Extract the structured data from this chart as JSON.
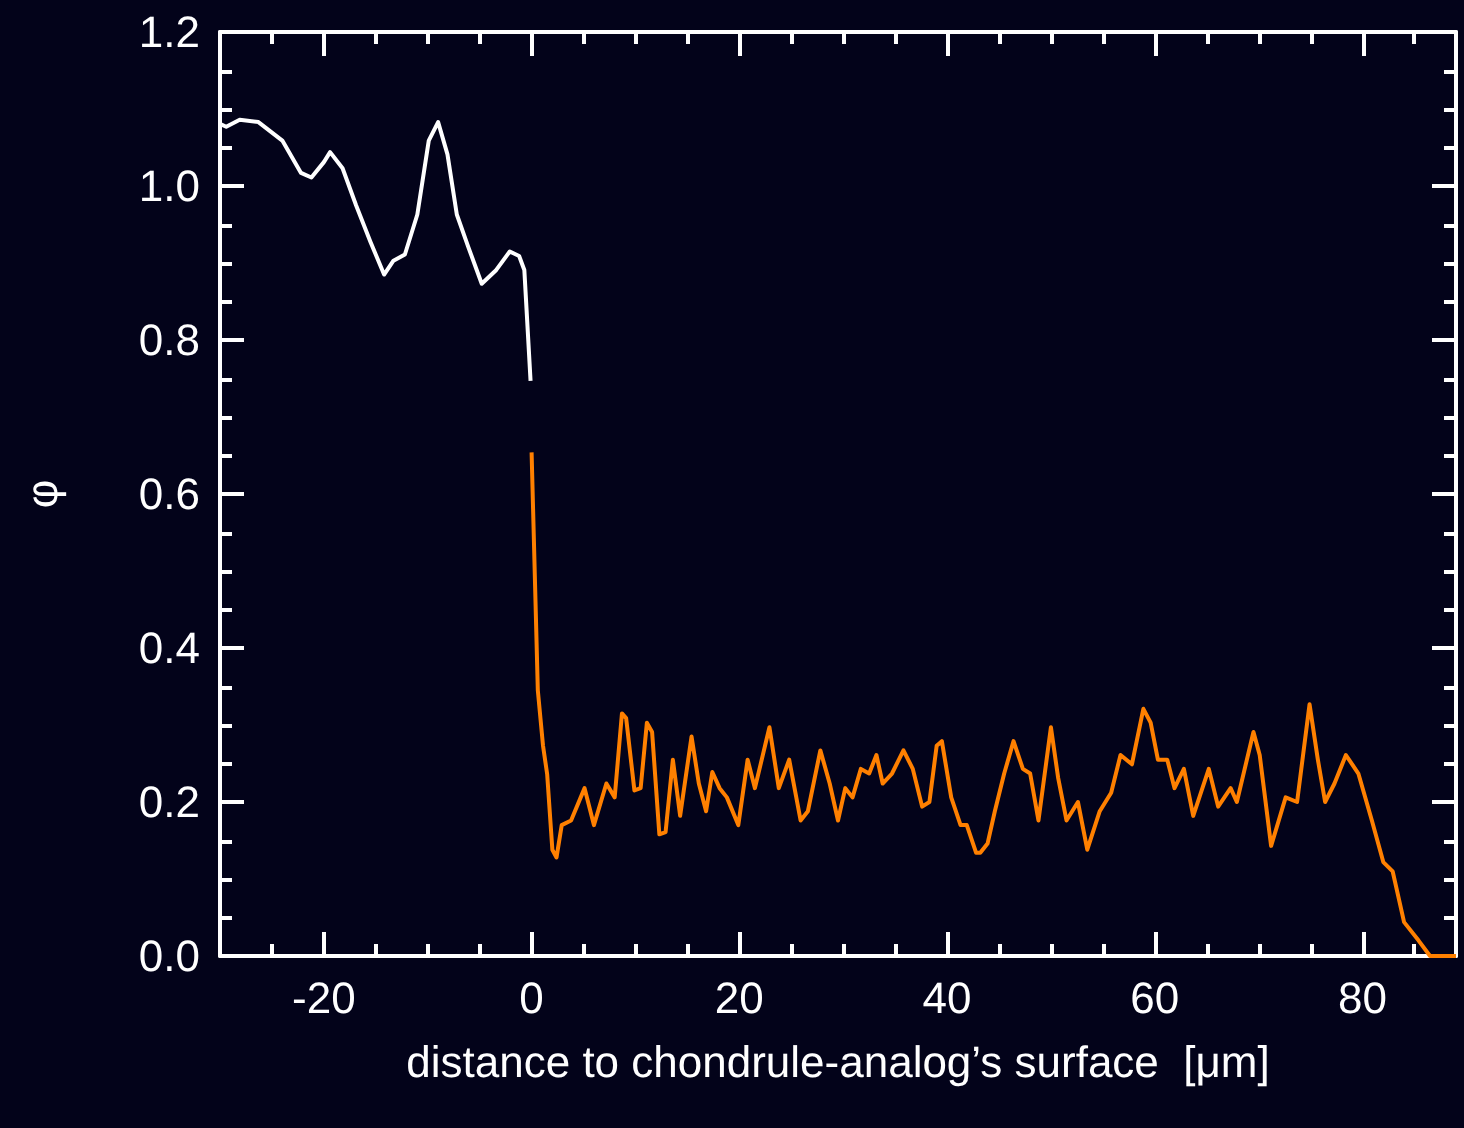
{
  "chart_data": {
    "type": "line",
    "xlabel": "distance to chondrule-analog’s surface  [μm]",
    "ylabel": "φ",
    "xlim": [
      -30,
      89
    ],
    "ylim": [
      0,
      1.2
    ],
    "xticks": [
      {
        "value": -25,
        "label": null
      },
      -20,
      {
        "value": -15,
        "label": null
      },
      {
        "value": -10,
        "label": null
      },
      {
        "value": -5,
        "label": null
      },
      0,
      {
        "value": 5,
        "label": null
      },
      {
        "value": 10,
        "label": null
      },
      {
        "value": 15,
        "label": null
      },
      20,
      {
        "value": 25,
        "label": null
      },
      {
        "value": 30,
        "label": null
      },
      {
        "value": 35,
        "label": null
      },
      40,
      {
        "value": 45,
        "label": null
      },
      {
        "value": 50,
        "label": null
      },
      {
        "value": 55,
        "label": null
      },
      60,
      {
        "value": 65,
        "label": null
      },
      {
        "value": 70,
        "label": null
      },
      {
        "value": 75,
        "label": null
      },
      80,
      {
        "value": 85,
        "label": null
      }
    ],
    "yticks": [
      {
        "value": 0,
        "label": "0.0"
      },
      {
        "value": 0.05,
        "label": null
      },
      {
        "value": 0.1,
        "label": null
      },
      {
        "value": 0.15,
        "label": null
      },
      0.2,
      {
        "value": 0.25,
        "label": null
      },
      {
        "value": 0.3,
        "label": null
      },
      {
        "value": 0.35,
        "label": null
      },
      0.4,
      {
        "value": 0.45,
        "label": null
      },
      {
        "value": 0.5,
        "label": null
      },
      {
        "value": 0.55,
        "label": null
      },
      0.6,
      {
        "value": 0.65,
        "label": null
      },
      {
        "value": 0.7,
        "label": null
      },
      {
        "value": 0.75,
        "label": null
      },
      0.8,
      {
        "value": 0.85,
        "label": null
      },
      {
        "value": 0.9,
        "label": null
      },
      {
        "value": 0.95,
        "label": null
      },
      {
        "value": 1,
        "label": "1.0"
      },
      {
        "value": 1.05,
        "label": null
      },
      {
        "value": 1.1,
        "label": null
      },
      {
        "value": 1.15,
        "label": null
      },
      1.2
    ],
    "series": [
      {
        "color": "#ffffff",
        "x": [
          -29.9,
          -29.4,
          -28.1,
          -26.3,
          -24.0,
          -22.2,
          -21.2,
          -20.0,
          -19.4,
          -18.2,
          -16.9,
          -15.5,
          -14.2,
          -13.3,
          -12.2,
          -11.0,
          -9.9,
          -9.0,
          -8.1,
          -7.2,
          -6.1,
          -4.8,
          -3.4,
          -2.1,
          -1.2,
          -0.7,
          -0.1
        ],
        "values": [
          1.08,
          1.077,
          1.086,
          1.083,
          1.059,
          1.017,
          1.011,
          1.031,
          1.044,
          1.023,
          0.975,
          0.927,
          0.885,
          0.903,
          0.911,
          0.963,
          1.059,
          1.083,
          1.041,
          0.963,
          0.921,
          0.873,
          0.891,
          0.915,
          0.909,
          0.891,
          0.747
        ]
      },
      {
        "color": "#ff8000",
        "x": [
          0.0,
          0.6,
          1.1,
          1.5,
          2.0,
          2.4,
          2.9,
          3.8,
          5.1,
          6.0,
          7.2,
          8.0,
          8.7,
          9.1,
          9.9,
          10.5,
          11.1,
          11.6,
          12.3,
          12.9,
          13.6,
          14.3,
          15.4,
          16.1,
          16.8,
          17.4,
          18.1,
          18.8,
          19.9,
          20.8,
          21.5,
          22.9,
          23.8,
          24.8,
          25.9,
          26.6,
          27.8,
          28.7,
          29.5,
          30.2,
          30.9,
          31.7,
          32.5,
          33.2,
          33.8,
          34.7,
          35.8,
          36.7,
          37.6,
          38.3,
          39.0,
          39.5,
          40.4,
          41.3,
          41.9,
          42.8,
          43.2,
          43.9,
          44.6,
          45.5,
          46.4,
          47.3,
          48.0,
          48.8,
          50.0,
          50.7,
          51.5,
          52.6,
          53.5,
          54.7,
          55.8,
          56.7,
          57.8,
          58.9,
          59.6,
          60.3,
          61.2,
          61.9,
          62.8,
          63.7,
          65.2,
          66.1,
          67.3,
          67.9,
          69.5,
          70.1,
          71.2,
          72.6,
          73.7,
          74.9,
          75.7,
          76.4,
          77.3,
          78.4,
          79.6,
          80.9,
          82.0,
          82.9,
          84.0,
          85.4,
          86.5,
          89
        ],
        "values": [
          0.654,
          0.345,
          0.273,
          0.236,
          0.138,
          0.128,
          0.17,
          0.176,
          0.218,
          0.17,
          0.224,
          0.206,
          0.315,
          0.309,
          0.215,
          0.218,
          0.303,
          0.291,
          0.158,
          0.161,
          0.255,
          0.182,
          0.285,
          0.224,
          0.188,
          0.239,
          0.218,
          0.206,
          0.17,
          0.255,
          0.218,
          0.297,
          0.218,
          0.255,
          0.176,
          0.188,
          0.267,
          0.224,
          0.176,
          0.218,
          0.206,
          0.243,
          0.237,
          0.261,
          0.224,
          0.237,
          0.267,
          0.243,
          0.194,
          0.2,
          0.273,
          0.279,
          0.206,
          0.17,
          0.17,
          0.134,
          0.134,
          0.146,
          0.188,
          0.237,
          0.279,
          0.243,
          0.237,
          0.176,
          0.297,
          0.231,
          0.176,
          0.2,
          0.138,
          0.188,
          0.212,
          0.261,
          0.249,
          0.321,
          0.303,
          0.255,
          0.255,
          0.218,
          0.243,
          0.182,
          0.243,
          0.194,
          0.218,
          0.2,
          0.291,
          0.261,
          0.143,
          0.206,
          0.2,
          0.327,
          0.255,
          0.2,
          0.224,
          0.261,
          0.237,
          0.176,
          0.122,
          0.11,
          0.044,
          0.02,
          0,
          0
        ]
      }
    ]
  }
}
